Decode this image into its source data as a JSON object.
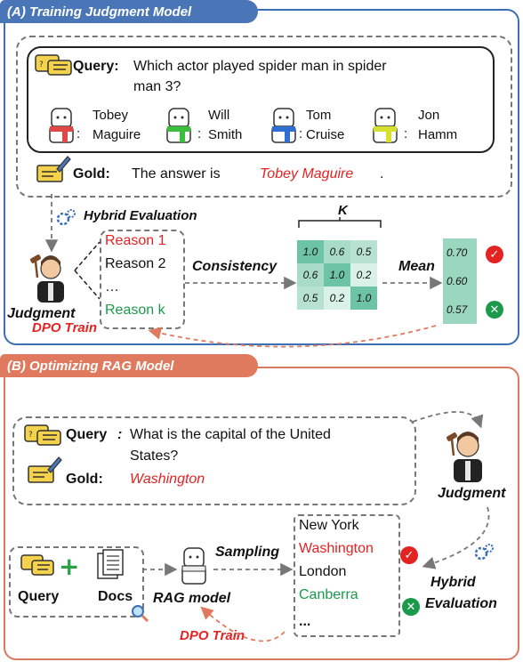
{
  "panel_a": {
    "title": "(A) Training Judgment  Model",
    "query_label": "Query:",
    "query_line1": "Which actor played spider man in spider",
    "query_line2": "man 3?",
    "options": [
      {
        "line1": "Tobey",
        "line2": "Maguire"
      },
      {
        "line1": "Will",
        "line2": "Smith"
      },
      {
        "line1": "Tom",
        "line2": "Cruise"
      },
      {
        "line1": "Jon",
        "line2": "Hamm"
      }
    ],
    "option_colon": ":",
    "gold_label": "Gold:",
    "gold_prefix": "The  answer is",
    "gold_answer": "Tobey Maguire",
    "gold_suffix": ".",
    "hybrid_eval": "Hybrid Evaluation",
    "reasons": [
      "Reason 1",
      "Reason 2",
      "…",
      "Reason k"
    ],
    "consistency": "Consistency",
    "k_label": "K",
    "matrix": [
      [
        "1.0",
        "0.6",
        "0.5"
      ],
      [
        "0.6",
        "1.0",
        "0.2"
      ],
      [
        "0.5",
        "0.2",
        "1.0"
      ]
    ],
    "mean": "Mean",
    "mean_values": [
      "0.70",
      "0.60",
      "0.57"
    ],
    "judgment": "Judgment",
    "dpo": "DPO Train"
  },
  "panel_b": {
    "title": "(B) Optimizing RAG Model",
    "query_label": "Query",
    "query_colon": ":",
    "query_line1": "What is the capital of the United",
    "query_line2": "States?",
    "gold_label": "Gold:",
    "gold_answer": "Washington",
    "judgment": "Judgment",
    "query_icon_label": "Query",
    "docs_label": "Docs",
    "rag_model": "RAG model",
    "sampling": "Sampling",
    "samples": [
      "New York",
      "Washington",
      "London",
      "Canberra",
      "..."
    ],
    "hybrid_line1": "Hybrid",
    "hybrid_line2": "Evaluation",
    "dpo": "DPO Train"
  },
  "colors": {
    "panel_a": "#3c6fb4",
    "panel_b": "#d97a60",
    "correct": "#e32222",
    "incorrect": "#1a9a4a",
    "matrix_dark": "#6cc3a6",
    "matrix_light": "#d9f1e7"
  }
}
